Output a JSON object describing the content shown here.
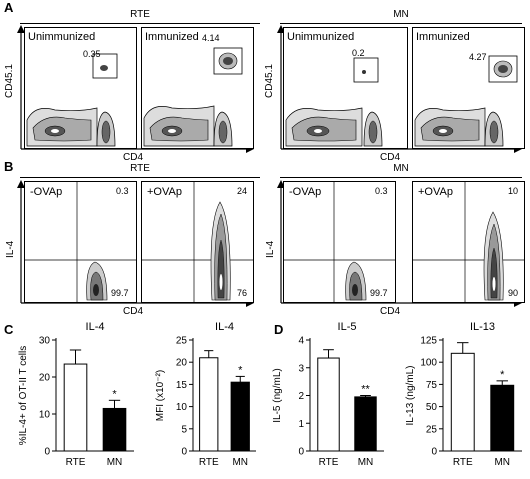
{
  "panel_letters": {
    "a": "A",
    "b": "B",
    "c": "C",
    "d": "D"
  },
  "row_a": {
    "left_header": "RTE",
    "right_header": "MN",
    "y_axis": "CD45.1",
    "x_axis": "CD4",
    "panels": [
      {
        "title": "Unimmunized",
        "gate": "0.35"
      },
      {
        "title": "Immunized",
        "gate": "4.14"
      },
      {
        "title": "Unimmunized",
        "gate": "0.2"
      },
      {
        "title": "Immunized",
        "gate": "4.27"
      }
    ]
  },
  "row_b": {
    "left_header": "RTE",
    "right_header": "MN",
    "y_axis": "IL-4",
    "x_axis": "CD4",
    "panels": [
      {
        "title": "-OVAp",
        "upper_right": "0.3",
        "lower_right": "99.7"
      },
      {
        "title": "+OVAp",
        "upper_right": "24",
        "lower_right": "76"
      },
      {
        "title": "-OVAp",
        "upper_right": "0.3",
        "lower_right": "99.7"
      },
      {
        "title": "+OVAp",
        "upper_right": "10",
        "lower_right": "90"
      }
    ]
  },
  "chart_data": [
    {
      "type": "bar",
      "title": "IL-4",
      "ylabel": "%IL-4+ of OT-II T cells",
      "categories": [
        "RTE",
        "MN"
      ],
      "values": [
        23.5,
        11.5
      ],
      "errors": [
        3.8,
        2.2
      ],
      "ylim": [
        0,
        30
      ],
      "yticks": [
        "0",
        "10",
        "20",
        "30"
      ],
      "fills": [
        "#ffffff",
        "#000000"
      ],
      "significance": "*"
    },
    {
      "type": "bar",
      "title": "IL-4",
      "ylabel": "MFI (x10⁻²)",
      "categories": [
        "RTE",
        "MN"
      ],
      "values": [
        21,
        15.5
      ],
      "errors": [
        1.6,
        1.3
      ],
      "ylim": [
        0,
        25
      ],
      "yticks": [
        "0",
        "5",
        "10",
        "15",
        "20",
        "25"
      ],
      "fills": [
        "#ffffff",
        "#000000"
      ],
      "significance": "*"
    },
    {
      "type": "bar",
      "title": "IL-5",
      "ylabel": "IL-5 (ng/mL)",
      "categories": [
        "RTE",
        "MN"
      ],
      "values": [
        3.35,
        1.95
      ],
      "errors": [
        0.3,
        0.05
      ],
      "ylim": [
        0,
        4
      ],
      "yticks": [
        "0",
        "1",
        "2",
        "3",
        "4"
      ],
      "fills": [
        "#ffffff",
        "#000000"
      ],
      "significance": "**"
    },
    {
      "type": "bar",
      "title": "IL-13",
      "ylabel": "IL-13 (ng/mL)",
      "categories": [
        "RTE",
        "MN"
      ],
      "values": [
        110,
        74
      ],
      "errors": [
        12,
        5
      ],
      "ylim": [
        0,
        125
      ],
      "yticks": [
        "0",
        "25",
        "50",
        "75",
        "100",
        "125"
      ],
      "fills": [
        "#ffffff",
        "#000000"
      ],
      "significance": "*"
    }
  ]
}
